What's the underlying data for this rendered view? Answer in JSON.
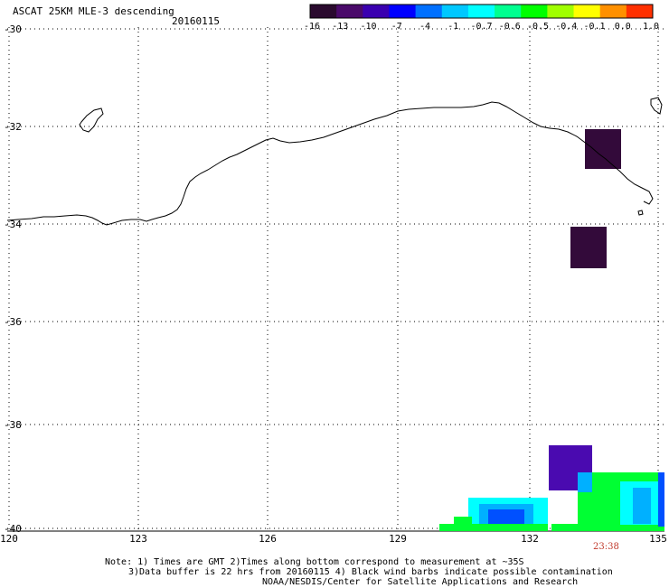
{
  "header": {
    "title": "ASCAT 25KM MLE-3 descending",
    "date": "20160115"
  },
  "colorbar": {
    "ticks": [
      "-16",
      "-13",
      "-10",
      "-7",
      "-4",
      "-1",
      "-0.7",
      "-0.6",
      "-0.5",
      "-0.4",
      "-0.1",
      "0.0",
      "1.0"
    ],
    "colors": [
      "#2a0a2e",
      "#4a0a6a",
      "#3a00b0",
      "#0000ff",
      "#0070ff",
      "#00c8ff",
      "#00ffff",
      "#00ff90",
      "#00ff00",
      "#a0ff00",
      "#ffff00",
      "#ff9000",
      "#ff3000"
    ]
  },
  "map": {
    "lat_labels": [
      "-30",
      "-32",
      "-34",
      "-36",
      "-38",
      "-40"
    ],
    "lon_labels": [
      "120",
      "123",
      "126",
      "129",
      "132",
      "135"
    ],
    "time_label": "23:38",
    "coastline_color": "#000000",
    "data_colors": {
      "dark_purple": "#330a3a",
      "purple": "#4a0ab0",
      "green": "#00ff33",
      "cyan": "#00ffff",
      "light_blue": "#00b0ff",
      "blue": "#0050ff"
    }
  },
  "notes": {
    "line1": "Note: 1) Times are GMT 2)Times along bottom correspond to measurement at ~35S",
    "line2": "3)Data buffer is 22 hrs from 20160115 4) Black wind barbs indicate possible contamination",
    "line3": "NOAA/NESDIS/Center for Satellite Applications and Research"
  }
}
